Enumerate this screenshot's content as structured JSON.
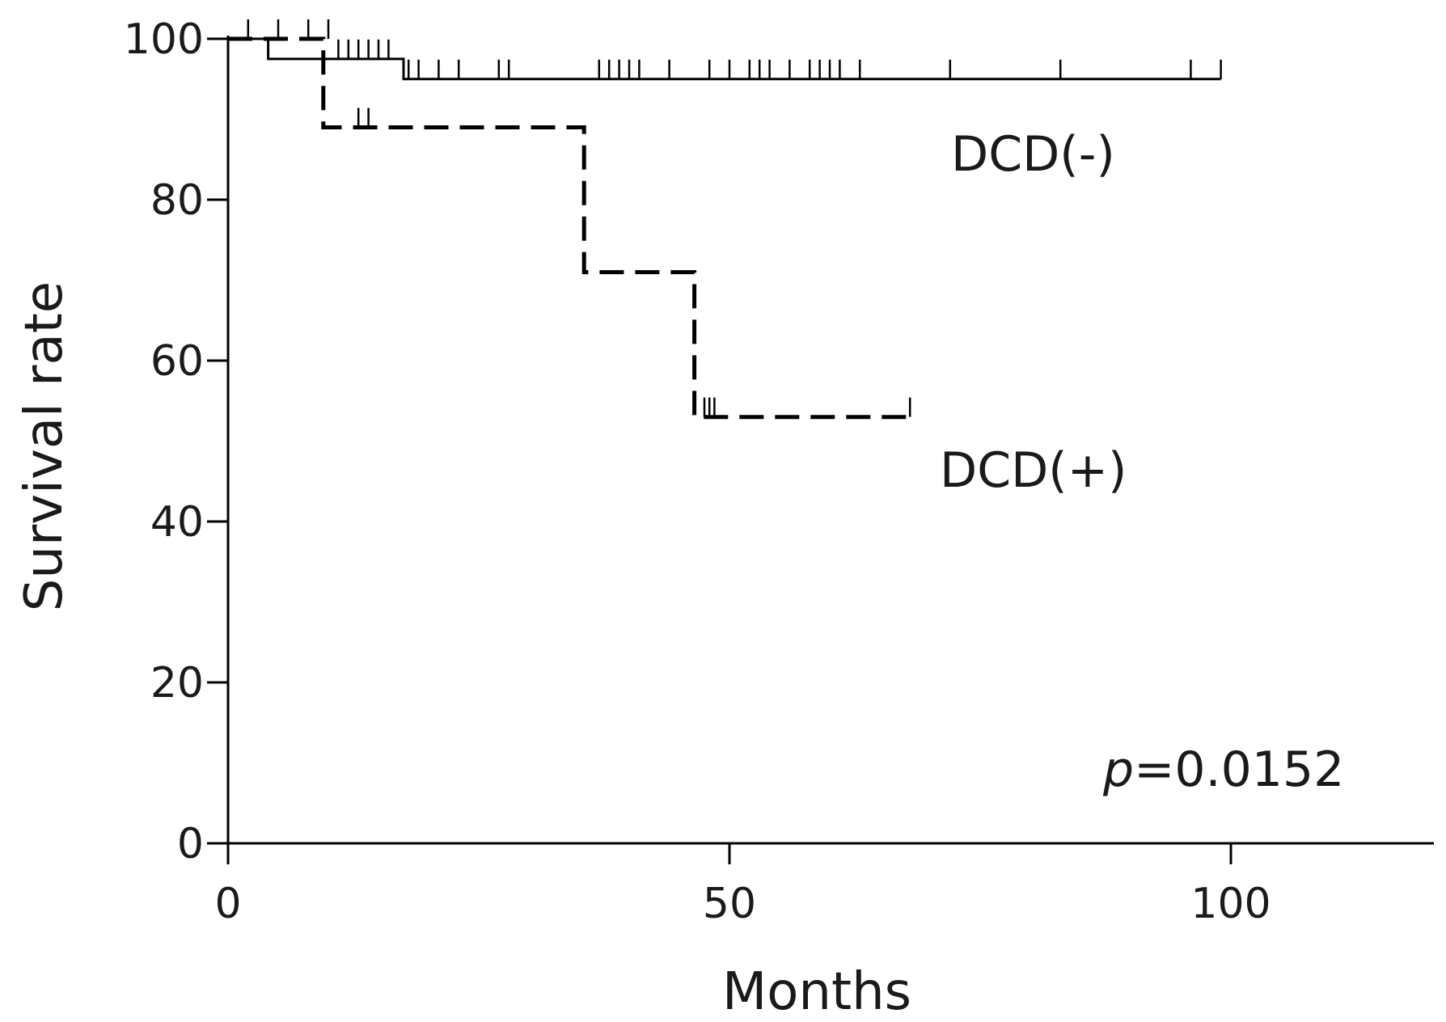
{
  "chart_data": {
    "type": "line",
    "title": "",
    "xlabel": "Months",
    "ylabel": "Survival rate",
    "xlim": [
      0,
      120
    ],
    "ylim": [
      0,
      100
    ],
    "xticks": [
      0,
      50,
      100
    ],
    "yticks": [
      0,
      20,
      40,
      60,
      80,
      100
    ],
    "grid": false,
    "legend": "none",
    "annotation": {
      "p_symbol": "p",
      "p_value": "=0.0152"
    },
    "series": [
      {
        "name": "DCD(-)",
        "line_style": "solid",
        "color": "#000000",
        "steps": [
          [
            0,
            100
          ],
          [
            4,
            100
          ],
          [
            4,
            97.5
          ],
          [
            17.5,
            97.5
          ],
          [
            17.5,
            95
          ],
          [
            99,
            95
          ]
        ],
        "censored": [
          [
            2,
            100
          ],
          [
            5,
            100
          ],
          [
            8,
            100
          ],
          [
            10,
            100
          ],
          [
            11,
            97.5
          ],
          [
            12,
            97.5
          ],
          [
            13,
            97.5
          ],
          [
            14,
            97.5
          ],
          [
            15,
            97.5
          ],
          [
            16,
            97.5
          ],
          [
            18,
            95
          ],
          [
            19,
            95
          ],
          [
            21,
            95
          ],
          [
            23,
            95
          ],
          [
            27,
            95
          ],
          [
            28,
            95
          ],
          [
            37,
            95
          ],
          [
            38,
            95
          ],
          [
            39,
            95
          ],
          [
            40,
            95
          ],
          [
            41,
            95
          ],
          [
            44,
            95
          ],
          [
            48,
            95
          ],
          [
            50,
            95
          ],
          [
            52,
            95
          ],
          [
            53,
            95
          ],
          [
            54,
            95
          ],
          [
            56,
            95
          ],
          [
            58,
            95
          ],
          [
            59,
            95
          ],
          [
            60,
            95
          ],
          [
            61,
            95
          ],
          [
            63,
            95
          ],
          [
            72,
            95
          ],
          [
            83,
            95
          ],
          [
            96,
            95
          ],
          [
            99,
            95
          ]
        ]
      },
      {
        "name": "DCD(+)",
        "line_style": "dashed",
        "color": "#000000",
        "steps": [
          [
            0,
            100
          ],
          [
            9.5,
            100
          ],
          [
            9.5,
            89
          ],
          [
            35.5,
            89
          ],
          [
            35.5,
            71
          ],
          [
            46.5,
            71
          ],
          [
            46.5,
            53
          ],
          [
            68,
            53
          ]
        ],
        "censored": [
          [
            13,
            89
          ],
          [
            14,
            89
          ],
          [
            47.5,
            53
          ],
          [
            48,
            53
          ],
          [
            48.5,
            53
          ],
          [
            68,
            53
          ]
        ]
      }
    ]
  }
}
